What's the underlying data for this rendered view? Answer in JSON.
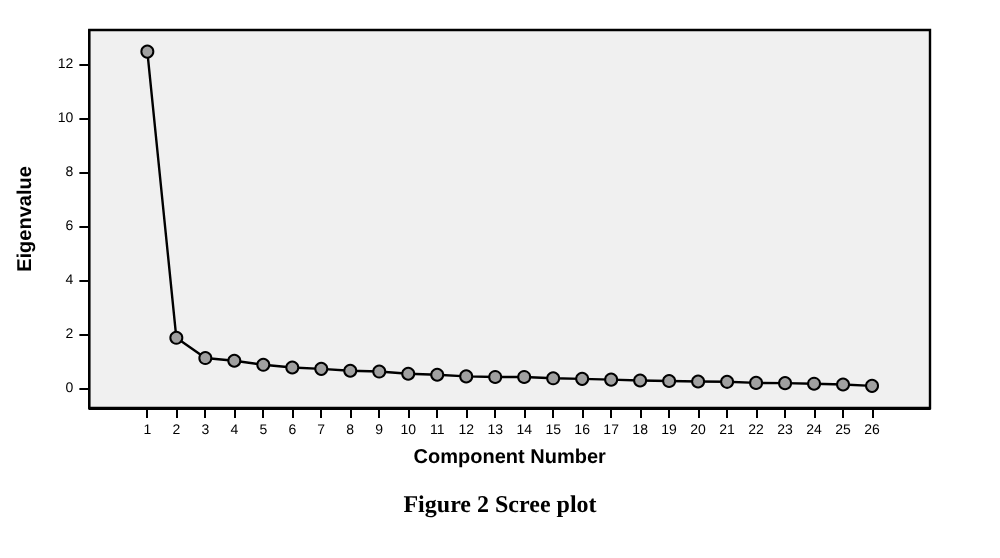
{
  "chart_data": {
    "type": "line",
    "xlabel": "Component Number",
    "ylabel": "Eigenvalue",
    "annotations": [
      "Figure 2 Scree plot"
    ],
    "x": [
      1,
      2,
      3,
      4,
      5,
      6,
      7,
      8,
      9,
      10,
      11,
      12,
      13,
      14,
      15,
      16,
      17,
      18,
      19,
      20,
      21,
      22,
      23,
      24,
      25,
      26
    ],
    "series": [
      {
        "color": "#000000",
        "values": [
          12.5,
          1.9,
          1.15,
          1.05,
          0.9,
          0.8,
          0.75,
          0.68,
          0.65,
          0.57,
          0.53,
          0.47,
          0.45,
          0.45,
          0.4,
          0.38,
          0.35,
          0.32,
          0.3,
          0.28,
          0.27,
          0.23,
          0.22,
          0.2,
          0.17,
          0.12
        ]
      }
    ],
    "xlim": [
      -1,
      28
    ],
    "xticks": [
      1,
      2,
      3,
      4,
      5,
      6,
      7,
      8,
      9,
      10,
      11,
      12,
      13,
      14,
      15,
      16,
      17,
      18,
      19,
      20,
      21,
      22,
      23,
      24,
      25,
      26
    ],
    "ylim": [
      -0.7,
      13.3
    ],
    "yticks": [
      0,
      2,
      4,
      6,
      8,
      10,
      12
    ],
    "grid": false,
    "marker": "circle",
    "line_style": "solid"
  }
}
